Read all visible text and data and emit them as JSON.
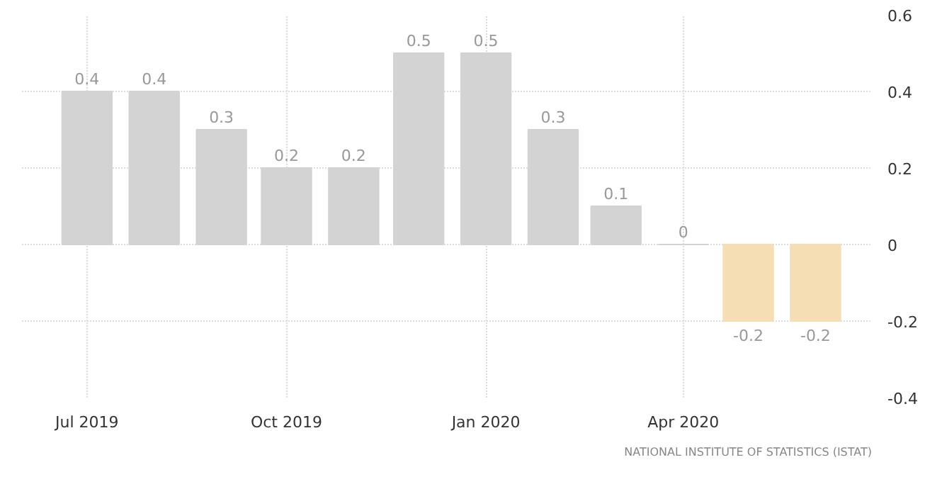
{
  "chart_data": {
    "type": "bar",
    "x": [
      "2019-07",
      "2019-08",
      "2019-09",
      "2019-10",
      "2019-11",
      "2019-12",
      "2020-01",
      "2020-02",
      "2020-03",
      "2020-04",
      "2020-05",
      "2020-06"
    ],
    "values": [
      0.4,
      0.4,
      0.3,
      0.2,
      0.2,
      0.5,
      0.5,
      0.3,
      0.1,
      0,
      -0.2,
      -0.2
    ],
    "colors": [
      "#d3d3d3",
      "#d3d3d3",
      "#d3d3d3",
      "#d3d3d3",
      "#d3d3d3",
      "#d3d3d3",
      "#d3d3d3",
      "#d3d3d3",
      "#d3d3d3",
      "#d3d3d3",
      "#f5deb3",
      "#f5deb3"
    ],
    "xlim": [
      "2019-06-01",
      "2020-06-27"
    ],
    "xticks": [
      {
        "value": "2019-07",
        "label": "Jul 2019"
      },
      {
        "value": "2019-10",
        "label": "Oct 2019"
      },
      {
        "value": "2020-01",
        "label": "Jan 2020"
      },
      {
        "value": "2020-04",
        "label": "Apr 2020"
      }
    ],
    "ylim": [
      -0.4,
      0.6
    ],
    "yticks": [
      {
        "value": -0.4,
        "label": "-0.4"
      },
      {
        "value": -0.2,
        "label": "-0.2"
      },
      0,
      {
        "value": 0.2,
        "label": "0.2"
      },
      {
        "value": 0.4,
        "label": "0.4"
      },
      {
        "value": 0.6,
        "label": "0.6"
      }
    ],
    "data_labels": true,
    "grid": true,
    "annotations": [
      "NATIONAL INSTITUTE OF STATISTICS (ISTAT)"
    ]
  }
}
